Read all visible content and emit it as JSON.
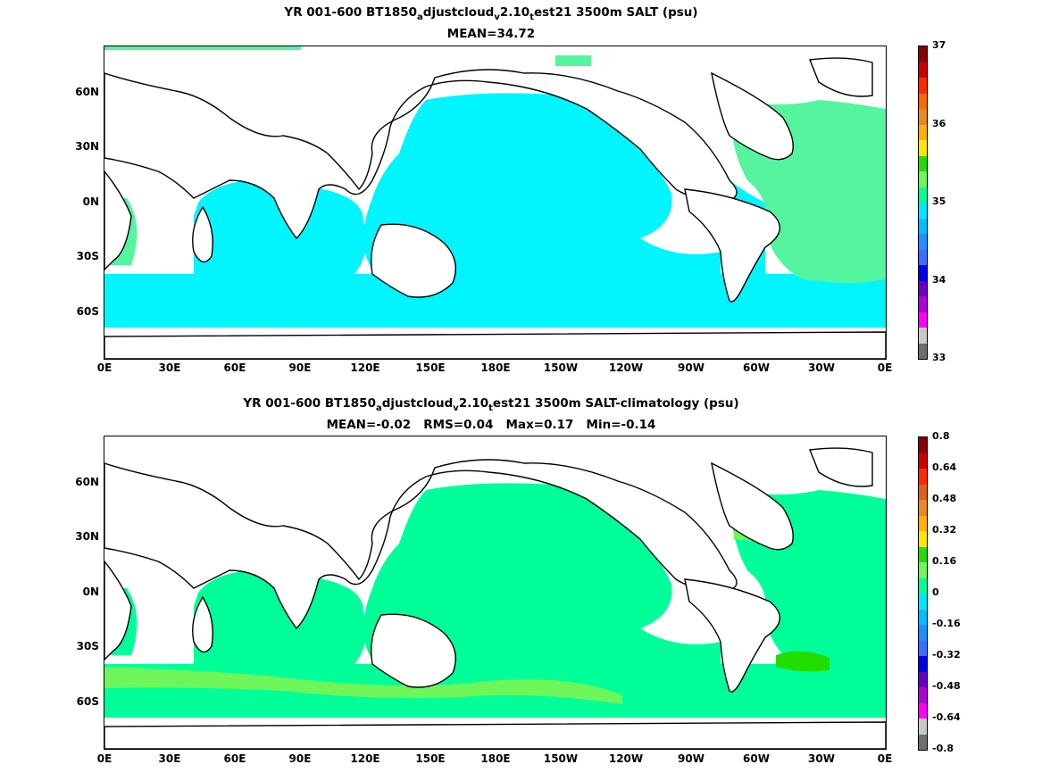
{
  "panel1": {
    "title_pre": "YR 001-600 BT1850",
    "title_sub_a": "a",
    "title_mid1": "djustcloud",
    "title_sub_v": "v",
    "title_mid2": "2.10",
    "title_sub_t": "t",
    "title_post": "est21 3500m SALT (psu)",
    "subtitle": "MEAN=34.72",
    "colorbar_labels": [
      "37",
      "36",
      "35",
      "34",
      "33"
    ],
    "colorbar_colors": [
      "#8b0000",
      "#cc0000",
      "#ff2a00",
      "#ff6a00",
      "#e88a20",
      "#ffb000",
      "#ffe600",
      "#22dd00",
      "#6ef55a",
      "#00ff99",
      "#00e8ff",
      "#00bfff",
      "#1e90ff",
      "#3a6fff",
      "#0000ee",
      "#6a00c8",
      "#b000d8",
      "#ff00ff",
      "#c8c8c8",
      "#6e6e6e"
    ]
  },
  "panel2": {
    "title_pre": "YR 001-600 BT1850",
    "title_sub_a": "a",
    "title_mid1": "djustcloud",
    "title_sub_v": "v",
    "title_mid2": "2.10",
    "title_sub_t": "t",
    "title_post": "est21 3500m SALT-climatology (psu)",
    "subtitle": "MEAN=-0.02   RMS=0.04   Max=0.17   Min=-0.14",
    "colorbar_labels": [
      "0.8",
      "0.64",
      "0.48",
      "0.32",
      "0.16",
      "0",
      "-0.16",
      "-0.32",
      "-0.48",
      "-0.64",
      "-0.8"
    ],
    "colorbar_colors": [
      "#8b0000",
      "#cc0000",
      "#ff2a00",
      "#e06020",
      "#e88a20",
      "#ffb000",
      "#ffe600",
      "#22dd00",
      "#6ef55a",
      "#00ff99",
      "#00e8ff",
      "#00bfff",
      "#1e90ff",
      "#3a6fff",
      "#0000ee",
      "#6a00c8",
      "#b000d8",
      "#ff00ff",
      "#c8c8c8",
      "#6e6e6e"
    ]
  },
  "axes": {
    "x_ticks": [
      "0E",
      "30E",
      "60E",
      "90E",
      "120E",
      "150E",
      "180E",
      "150W",
      "120W",
      "90W",
      "60W",
      "30W",
      "0E"
    ],
    "y_ticks": [
      "60N",
      "30N",
      "0N",
      "30S",
      "60S"
    ]
  },
  "colors": {
    "panel1_ocean": "#00f5ff",
    "panel1_atlantic": "#55f5a0",
    "panel2_ocean": "#00ff99",
    "panel2_positive": "#6ef55a",
    "panel2_max": "#22dd00",
    "land": "#ffffff"
  }
}
